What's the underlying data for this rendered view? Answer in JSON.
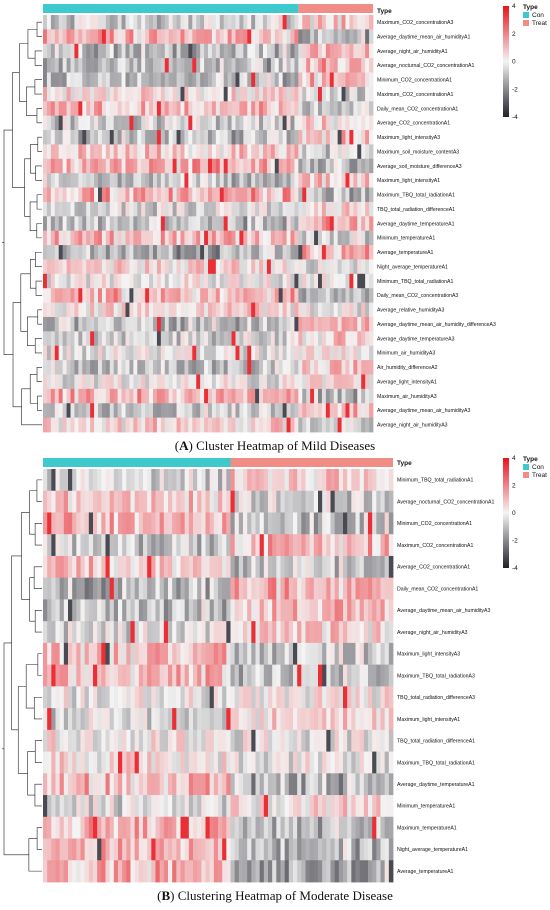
{
  "colors": {
    "con": "#3ec9cf",
    "treat": "#f08d86",
    "high": "#e8131b",
    "mid": "#f4f4f4",
    "low": "#20202a",
    "dendrogram": "#222222"
  },
  "chart_data": [
    {
      "type": "heatmap",
      "caption_prefix": "A",
      "caption_text": "Cluster Heatmap of Mild Diseases",
      "annotation_title": "Type",
      "groups": [
        {
          "name": "Con",
          "fraction": 0.77
        },
        {
          "name": "Treat",
          "fraction": 0.23
        }
      ],
      "scale": {
        "min": -4,
        "max": 4,
        "ticks": [
          4,
          2,
          0,
          -2,
          -4
        ]
      },
      "rows": [
        "Maximum_CO2_concentrationA3",
        "Average_daytime_mean_air_humidityA1",
        "Average_night_air_humidityA1",
        "Average_nocturnal_CO2_concentrationA1",
        "Minimum_CO2_concentrationA1",
        "Maximum_CO2_concentrationA1",
        "Daily_mean_CO2_concentrationA1",
        "Average_CO2_concentrationA1",
        "Maximum_light_intensityA3",
        "Maximum_soil_moisture_contentA3",
        "Average_soil_moisture_differenceA3",
        "Maximum_light_intensityA1",
        "Maximum_TBQ_total_radiationA1",
        "TBQ_total_radiation_differenceA1",
        "Average_daytime_temperatureA1",
        "Minimum_temperatureA1",
        "Average_temperatureA1",
        "Night_average_temperatureA1",
        "Minimum_TBQ_total_radiationA1",
        "Daily_mean_CO2_concentrationA3",
        "Average_relative_humidityA3",
        "Average_daytime_mean_air_humidity_differenceA3",
        "Average_daytime_temperatureA3",
        "Minimum_air_humidityA3",
        "Air_humidity_differenceA2",
        "Average_light_intensityA1",
        "Maximum_air_humidityA3",
        "Average_daytime_mean_air_humidityA3",
        "Average_night_air_humidityA3"
      ]
    },
    {
      "type": "heatmap",
      "caption_prefix": "B",
      "caption_text": "Clustering Heatmap of Moderate Disease",
      "annotation_title": "Type",
      "groups": [
        {
          "name": "Con",
          "fraction": 0.53
        },
        {
          "name": "Treat",
          "fraction": 0.47
        }
      ],
      "scale": {
        "min": -4,
        "max": 4,
        "ticks": [
          4,
          2,
          0,
          -2,
          -4
        ]
      },
      "rows": [
        "Minimum_TBQ_total_radiationA1",
        "Average_nocturnal_CO2_concentrationA1",
        "Minimum_CO2_concentrationA1",
        "Maximum_CO2_concentrationA1",
        "Average_CO2_concentrationA1",
        "Daily_mean_CO2_concentrationA1",
        "Average_daytime_mean_air_humidityA3",
        "Average_night_air_humidityA3",
        "Maximum_light_intensityA3",
        "Maximum_TBQ_total_radiationA3",
        "TBQ_total_radiation_differenceA3",
        "Maximum_light_intensityA1",
        "TBQ_total_radiation_differenceA1",
        "Maximum_TBQ_total_radiationA1",
        "Average_daytime_temperatureA1",
        "Minimum_temperatureA1",
        "Maximum_temperatureA1",
        "Night_average_temperatureA1",
        "Average_temperatureA1"
      ]
    }
  ]
}
